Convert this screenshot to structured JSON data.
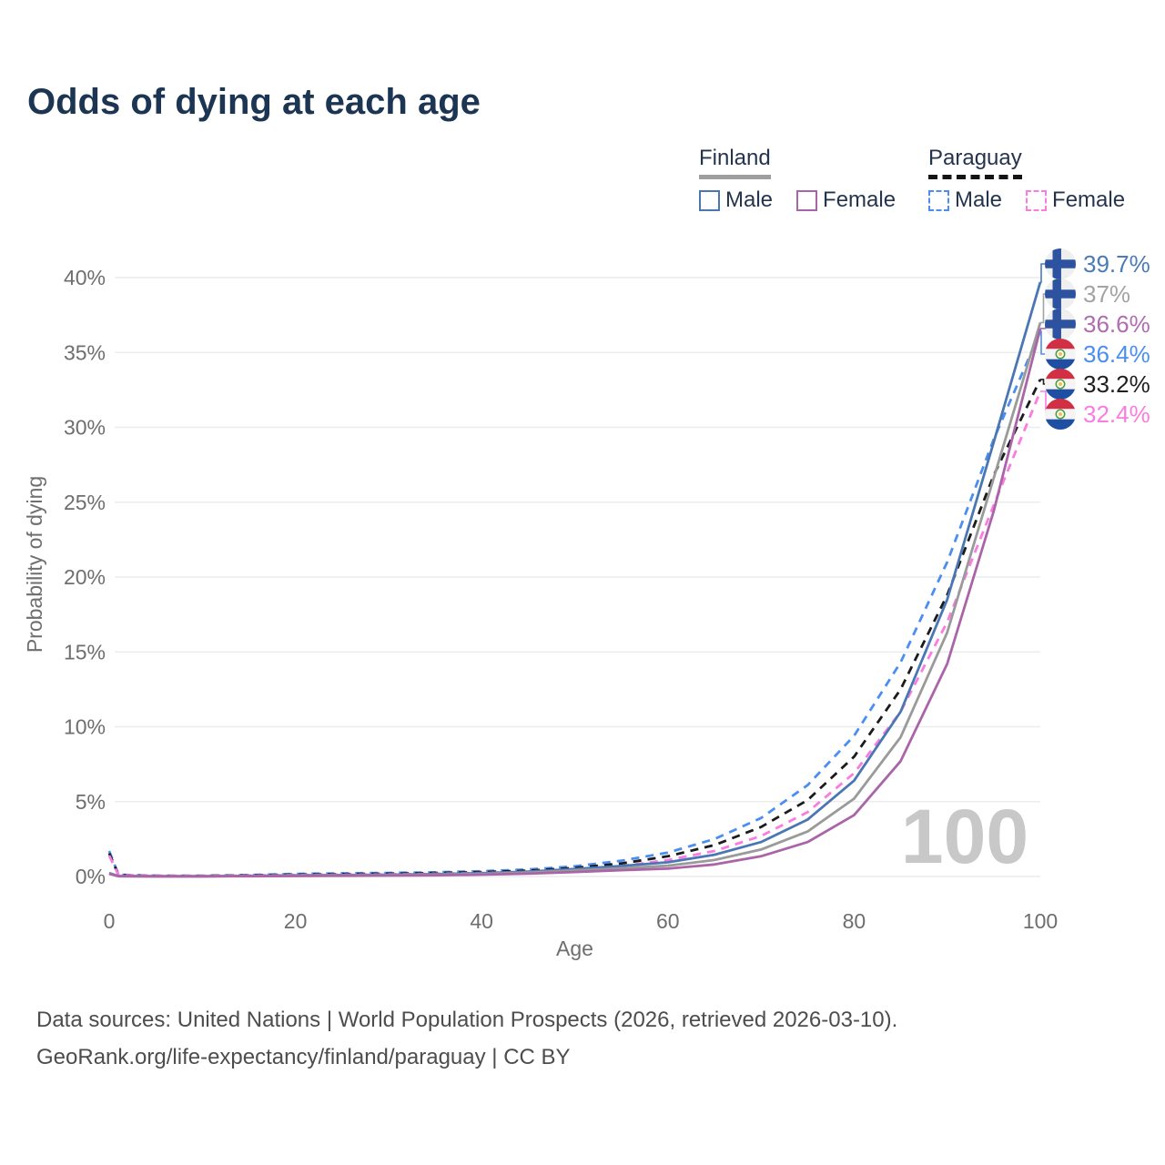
{
  "title": "Odds of dying at each age",
  "legend": {
    "groups": [
      {
        "name": "Finland",
        "line_style": "solid",
        "underline_color": "#9e9e9e",
        "items": [
          {
            "label": "Male",
            "color": "#4a77b4"
          },
          {
            "label": "Female",
            "color": "#aa64a8"
          }
        ]
      },
      {
        "name": "Paraguay",
        "line_style": "dashed",
        "underline_color": "#141414",
        "items": [
          {
            "label": "Male",
            "color": "#4b8ef2"
          },
          {
            "label": "Female",
            "color": "#fb7ce0"
          }
        ]
      }
    ]
  },
  "chart_data": {
    "type": "line",
    "xlabel": "Age",
    "ylabel": "Probability of dying",
    "xlim": [
      0,
      100
    ],
    "ylim": [
      0,
      40
    ],
    "grid": "horizontal",
    "watermark": "100",
    "x_ticks": [
      {
        "v": 0,
        "label": "0"
      },
      {
        "v": 20,
        "label": "20"
      },
      {
        "v": 40,
        "label": "40"
      },
      {
        "v": 60,
        "label": "60"
      },
      {
        "v": 80,
        "label": "80"
      },
      {
        "v": 100,
        "label": "100"
      }
    ],
    "y_ticks": [
      {
        "v": 0,
        "label": "0%"
      },
      {
        "v": 5,
        "label": "5%"
      },
      {
        "v": 10,
        "label": "10%"
      },
      {
        "v": 15,
        "label": "15%"
      },
      {
        "v": 20,
        "label": "20%"
      },
      {
        "v": 25,
        "label": "25%"
      },
      {
        "v": 30,
        "label": "30%"
      },
      {
        "v": 35,
        "label": "35%"
      },
      {
        "v": 40,
        "label": "40%"
      }
    ],
    "x": [
      0,
      1,
      5,
      10,
      15,
      20,
      25,
      30,
      35,
      40,
      45,
      50,
      55,
      60,
      65,
      70,
      75,
      80,
      85,
      90,
      95,
      100
    ],
    "series": [
      {
        "name": "Paraguay Male",
        "color": "#4b8ef2",
        "dash": true,
        "values": [
          1.7,
          0.12,
          0.05,
          0.04,
          0.1,
          0.17,
          0.21,
          0.24,
          0.28,
          0.35,
          0.47,
          0.68,
          1.05,
          1.6,
          2.5,
          3.9,
          6.1,
          9.4,
          14.3,
          21.0,
          29.2,
          36.4
        ]
      },
      {
        "name": "Paraguay Total",
        "color": "#1b1b1b",
        "dash": true,
        "values": [
          1.55,
          0.1,
          0.04,
          0.04,
          0.08,
          0.13,
          0.16,
          0.19,
          0.23,
          0.29,
          0.39,
          0.57,
          0.87,
          1.35,
          2.1,
          3.3,
          5.1,
          8.0,
          12.5,
          18.8,
          26.8,
          33.2
        ]
      },
      {
        "name": "Paraguay Female",
        "color": "#fb7ce0",
        "dash": true,
        "values": [
          1.4,
          0.09,
          0.04,
          0.03,
          0.06,
          0.1,
          0.12,
          0.14,
          0.18,
          0.23,
          0.32,
          0.47,
          0.7,
          1.1,
          1.7,
          2.7,
          4.3,
          6.9,
          11.0,
          17.0,
          24.8,
          32.4
        ]
      },
      {
        "name": "Finland Male",
        "color": "#4a77b4",
        "dash": false,
        "values": [
          0.23,
          0.03,
          0.01,
          0.01,
          0.04,
          0.08,
          0.1,
          0.12,
          0.16,
          0.22,
          0.33,
          0.5,
          0.7,
          0.95,
          1.45,
          2.3,
          3.8,
          6.4,
          11.0,
          18.5,
          29.0,
          39.7
        ]
      },
      {
        "name": "Finland Total",
        "color": "#9a9a9a",
        "dash": false,
        "values": [
          0.2,
          0.02,
          0.01,
          0.01,
          0.03,
          0.06,
          0.08,
          0.09,
          0.12,
          0.17,
          0.26,
          0.4,
          0.55,
          0.72,
          1.1,
          1.8,
          3.0,
          5.2,
          9.3,
          16.3,
          26.6,
          37.0
        ]
      },
      {
        "name": "Finland Female",
        "color": "#aa64a8",
        "dash": false,
        "values": [
          0.17,
          0.02,
          0.01,
          0.01,
          0.02,
          0.03,
          0.05,
          0.06,
          0.08,
          0.12,
          0.19,
          0.3,
          0.42,
          0.52,
          0.8,
          1.35,
          2.3,
          4.1,
          7.7,
          14.2,
          24.4,
          36.6
        ]
      }
    ],
    "end_labels": [
      {
        "text": "39.7%",
        "color": "#4a7ab8",
        "flag": "finland",
        "series": "Finland Male",
        "value": 39.7
      },
      {
        "text": "37%",
        "color": "#a3a3a3",
        "flag": "finland",
        "series": "Finland Total",
        "value": 37.0
      },
      {
        "text": "36.6%",
        "color": "#b16bb0",
        "flag": "finland",
        "series": "Finland Female",
        "value": 36.6
      },
      {
        "text": "36.4%",
        "color": "#4b8ef2",
        "flag": "paraguay",
        "series": "Paraguay Male",
        "value": 36.4
      },
      {
        "text": "33.2%",
        "color": "#1f1f1f",
        "flag": "paraguay",
        "series": "Paraguay Total",
        "value": 33.2
      },
      {
        "text": "32.4%",
        "color": "#fb7ce0",
        "flag": "paraguay",
        "series": "Paraguay Female",
        "value": 32.4
      }
    ]
  },
  "footer": {
    "line1": "Data sources: United Nations | World Population Prospects (2026, retrieved 2026-03-10).",
    "line2": "GeoRank.org/life-expectancy/finland/paraguay | CC BY"
  }
}
